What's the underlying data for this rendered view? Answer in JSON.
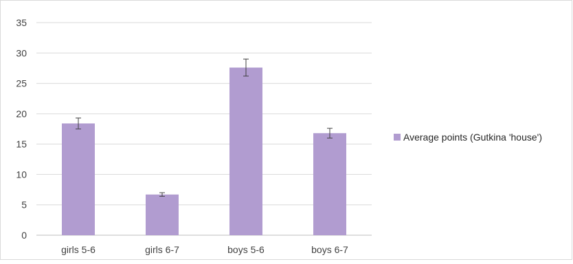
{
  "chart_data": {
    "type": "bar",
    "categories": [
      "girls 5-6",
      "girls 6-7",
      "boys 5-6",
      "boys 6-7"
    ],
    "series": [
      {
        "name": "Average points (Gutkina 'house')",
        "values": [
          18.4,
          6.7,
          27.6,
          16.8
        ],
        "error": [
          0.9,
          0.3,
          1.4,
          0.8
        ],
        "color": "#b19cd0"
      }
    ],
    "ylim": [
      0,
      35
    ],
    "yticks": [
      0,
      5,
      10,
      15,
      20,
      25,
      30,
      35
    ],
    "grid": true,
    "legend": "right",
    "colors": {
      "bar": "#b19cd0",
      "grid": "#d9d9d9",
      "axis": "#bfbfbf",
      "text": "#404040",
      "error": "#404040"
    }
  }
}
